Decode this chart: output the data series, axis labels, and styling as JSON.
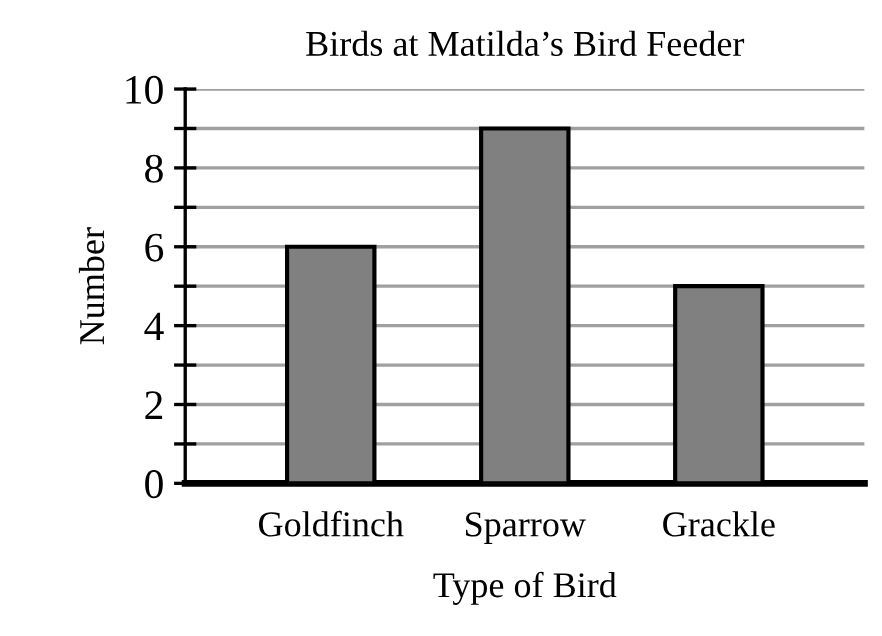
{
  "chart_data": {
    "type": "bar",
    "title": "Birds at Matilda’s Bird Feeder",
    "xlabel": "Type of Bird",
    "ylabel": "Number",
    "categories": [
      "Goldfinch",
      "Sparrow",
      "Grackle"
    ],
    "values": [
      6,
      9,
      5
    ],
    "color": "#808080",
    "ylim": [
      0,
      10
    ],
    "yticks": [
      0,
      {
        "value": 1,
        "label": null
      },
      2,
      {
        "value": 3,
        "label": null
      },
      4,
      {
        "value": 5,
        "label": null
      },
      6,
      {
        "value": 7,
        "label": null
      },
      8,
      {
        "value": 9,
        "label": null
      },
      10
    ],
    "grid": "y"
  }
}
